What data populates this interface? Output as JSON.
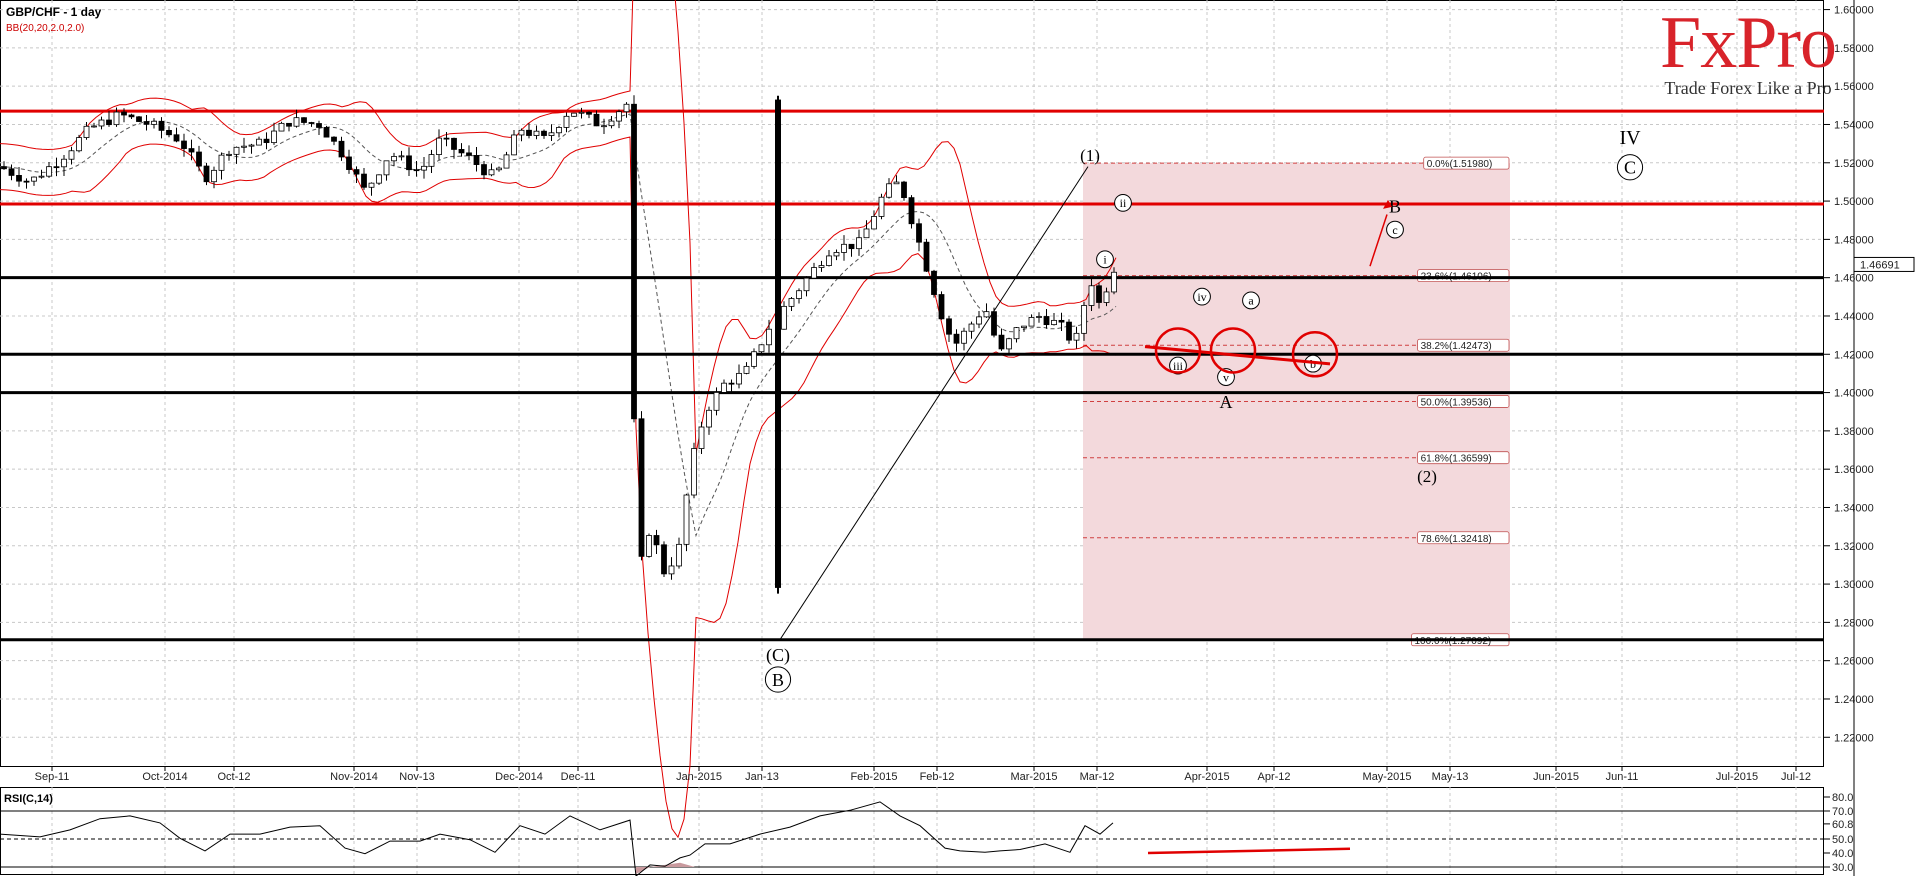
{
  "header": {
    "symbol_timeframe": "GBP/CHF - 1 day",
    "indicator": "BB(20,20,2.0,2.0)",
    "rsi_label": "RSI(C,14)"
  },
  "brand": {
    "name": "FxPro",
    "tagline": "Trade Forex Like a Pro",
    "color": "#d8232a"
  },
  "chart_data": {
    "type": "candlestick",
    "instrument": "GBP/CHF",
    "timeframe": "1 day",
    "ylim": [
      1.205,
      1.605
    ],
    "y_ticks": [
      "1.60000",
      "1.58000",
      "1.56000",
      "1.54000",
      "1.52000",
      "1.50000",
      "1.48000",
      "1.46000",
      "1.44000",
      "1.42000",
      "1.40000",
      "1.38000",
      "1.36000",
      "1.34000",
      "1.32000",
      "1.30000",
      "1.28000",
      "1.26000",
      "1.24000",
      "1.22000"
    ],
    "x_labels": [
      "Sep-11",
      "Oct-2014",
      "Oct-12",
      "Nov-2014",
      "Nov-13",
      "Dec-2014",
      "Dec-11",
      "Jan-2015",
      "Jan-13",
      "Feb-2015",
      "Feb-12",
      "Mar-2015",
      "Mar-12",
      "Apr-2015",
      "Apr-12",
      "May-2015",
      "May-13",
      "Jun-2015",
      "Jun-11",
      "Jul-2015",
      "Jul-12"
    ],
    "current_price": "1.46691",
    "horizontal_levels": [
      {
        "value": 1.547,
        "color": "#e00000"
      },
      {
        "value": 1.4985,
        "color": "#e00000"
      },
      {
        "value": 1.46,
        "color": "#000000"
      },
      {
        "value": 1.42,
        "color": "#000000"
      },
      {
        "value": 1.4,
        "color": "#000000"
      },
      {
        "value": 1.2709,
        "color": "#000000"
      }
    ],
    "fibonacci": [
      {
        "label": "0.0%(1.51980)",
        "value": 1.5198
      },
      {
        "label": "23.6%(1.46106)",
        "value": 1.46106
      },
      {
        "label": "38.2%(1.42473)",
        "value": 1.42473
      },
      {
        "label": "50.0%(1.39536)",
        "value": 1.39536
      },
      {
        "label": "61.8%(1.36599)",
        "value": 1.36599
      },
      {
        "label": "78.6%(1.32418)",
        "value": 1.32418
      },
      {
        "label": "100.0%(1.27092)",
        "value": 1.27092
      }
    ],
    "wave_labels": [
      "(1)",
      "ii",
      "i",
      "iv",
      "a",
      "iii",
      "v",
      "A",
      "b",
      "B",
      "c",
      "(2)",
      "IV",
      "C",
      "(C)",
      "B"
    ],
    "rsi": {
      "ylim": [
        25,
        85
      ],
      "ticks": [
        "80.0",
        "70.0",
        "60.8",
        "50.0",
        "40.0",
        "30.0"
      ],
      "levels": [
        70,
        50,
        30
      ]
    },
    "price_path": [
      [
        0,
        1.518
      ],
      [
        30,
        1.51
      ],
      [
        60,
        1.522
      ],
      [
        90,
        1.538
      ],
      [
        120,
        1.545
      ],
      [
        150,
        1.54
      ],
      [
        180,
        1.532
      ],
      [
        205,
        1.512
      ],
      [
        230,
        1.528
      ],
      [
        260,
        1.53
      ],
      [
        290,
        1.542
      ],
      [
        320,
        1.54
      ],
      [
        345,
        1.523
      ],
      [
        365,
        1.505
      ],
      [
        390,
        1.525
      ],
      [
        420,
        1.515
      ],
      [
        440,
        1.532
      ],
      [
        470,
        1.522
      ],
      [
        495,
        1.512
      ],
      [
        520,
        1.538
      ],
      [
        545,
        1.532
      ],
      [
        570,
        1.548
      ],
      [
        600,
        1.54
      ],
      [
        630,
        1.552
      ],
      [
        636,
        1.3
      ],
      [
        650,
        1.33
      ],
      [
        665,
        1.305
      ],
      [
        680,
        1.32
      ],
      [
        690,
        1.36
      ],
      [
        705,
        1.39
      ],
      [
        725,
        1.405
      ],
      [
        745,
        1.41
      ],
      [
        770,
        1.435
      ],
      [
        800,
        1.455
      ],
      [
        830,
        1.475
      ],
      [
        860,
        1.478
      ],
      [
        885,
        1.505
      ],
      [
        900,
        1.51
      ],
      [
        915,
        1.485
      ],
      [
        930,
        1.46
      ],
      [
        945,
        1.435
      ],
      [
        955,
        1.425
      ],
      [
        970,
        1.435
      ],
      [
        985,
        1.445
      ],
      [
        1000,
        1.42
      ],
      [
        1020,
        1.435
      ],
      [
        1040,
        1.44
      ],
      [
        1060,
        1.435
      ],
      [
        1075,
        1.425
      ],
      [
        1090,
        1.46
      ],
      [
        1100,
        1.445
      ],
      [
        1113,
        1.465
      ],
      [
        1120,
        1.467
      ]
    ],
    "rsi_path": [
      [
        0,
        55
      ],
      [
        40,
        50
      ],
      [
        70,
        58
      ],
      [
        100,
        63
      ],
      [
        130,
        68
      ],
      [
        160,
        60
      ],
      [
        180,
        52
      ],
      [
        205,
        40
      ],
      [
        230,
        55
      ],
      [
        260,
        52
      ],
      [
        290,
        60
      ],
      [
        320,
        58
      ],
      [
        345,
        45
      ],
      [
        365,
        38
      ],
      [
        390,
        50
      ],
      [
        420,
        47
      ],
      [
        440,
        55
      ],
      [
        470,
        48
      ],
      [
        495,
        42
      ],
      [
        520,
        58
      ],
      [
        545,
        55
      ],
      [
        570,
        65
      ],
      [
        600,
        58
      ],
      [
        630,
        62
      ],
      [
        636,
        25
      ],
      [
        650,
        30
      ],
      [
        665,
        32
      ],
      [
        680,
        35
      ],
      [
        690,
        40
      ],
      [
        705,
        45
      ],
      [
        730,
        48
      ],
      [
        760,
        52
      ],
      [
        790,
        60
      ],
      [
        820,
        65
      ],
      [
        850,
        72
      ],
      [
        880,
        75
      ],
      [
        900,
        68
      ],
      [
        920,
        58
      ],
      [
        945,
        45
      ],
      [
        960,
        40
      ],
      [
        985,
        42
      ],
      [
        1000,
        40
      ],
      [
        1020,
        44
      ],
      [
        1045,
        45
      ],
      [
        1070,
        42
      ],
      [
        1085,
        58
      ],
      [
        1100,
        55
      ],
      [
        1113,
        60
      ]
    ]
  }
}
